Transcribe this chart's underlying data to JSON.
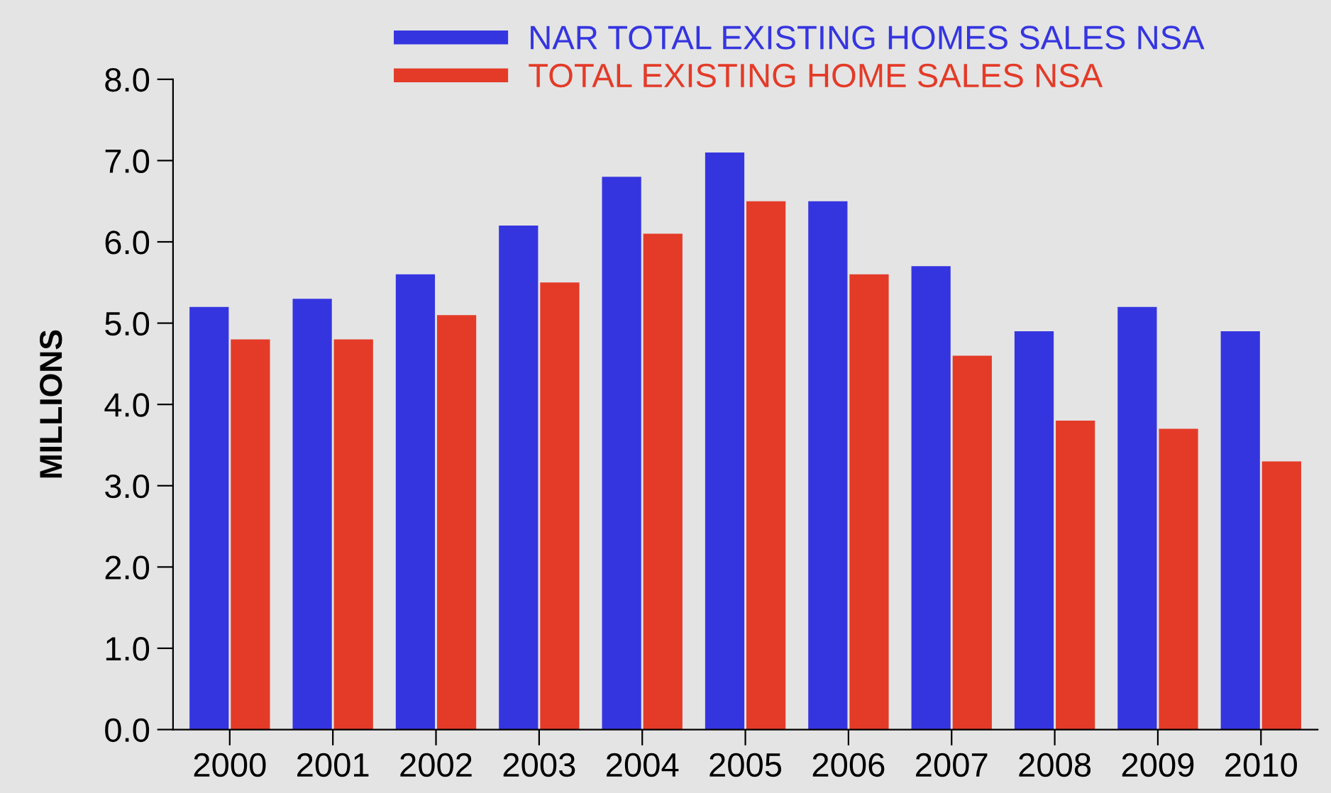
{
  "chart_data": {
    "type": "bar",
    "ylabel": "MILLIONS",
    "categories": [
      "2000",
      "2001",
      "2002",
      "2003",
      "2004",
      "2005",
      "2006",
      "2007",
      "2008",
      "2009",
      "2010"
    ],
    "series": [
      {
        "name": "NAR TOTAL EXISTING HOMES SALES NSA",
        "color": "#3535e0",
        "values": [
          5.2,
          5.3,
          5.6,
          6.2,
          6.8,
          7.1,
          6.5,
          5.7,
          4.9,
          5.2,
          4.9
        ]
      },
      {
        "name": "TOTAL EXISTING HOME SALES NSA",
        "color": "#e33b28",
        "values": [
          4.8,
          4.8,
          5.1,
          5.5,
          6.1,
          6.5,
          5.6,
          4.6,
          3.8,
          3.7,
          3.3
        ]
      }
    ],
    "ylim": [
      0,
      8
    ],
    "yticks": [
      {
        "value": 0,
        "label": "0.0"
      },
      {
        "value": 1,
        "label": "1.0"
      },
      {
        "value": 2,
        "label": "2.0"
      },
      {
        "value": 3,
        "label": "3.0"
      },
      {
        "value": 4,
        "label": "4.0"
      },
      {
        "value": 5,
        "label": "5.0"
      },
      {
        "value": 6,
        "label": "6.0"
      },
      {
        "value": 7,
        "label": "7.0"
      },
      {
        "value": 8,
        "label": "8.0"
      }
    ],
    "grid": false,
    "legend": "top"
  }
}
